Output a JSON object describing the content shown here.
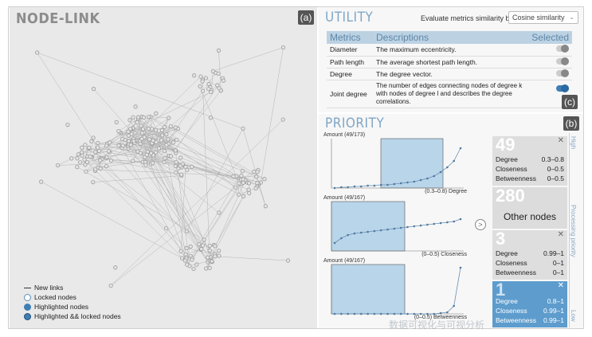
{
  "nodelink": {
    "title": "NODE-LINK",
    "badge": "(a)",
    "legend": [
      {
        "label": "New links",
        "icon": "line-icon"
      },
      {
        "label": "Locked nodes",
        "icon": "hollow-circle-icon"
      },
      {
        "label": "Highlighted nodes",
        "icon": "filled-circle-icon"
      },
      {
        "label": "Highlighted && locked nodes",
        "icon": "filled-ring-circle-icon"
      }
    ]
  },
  "utility": {
    "title": "UTILITY",
    "evaluate_label": "Evaluate metrics similarity by:",
    "similarity_value": "Cosine similarity",
    "badge": "(c)",
    "columns": [
      "Metrics",
      "Descriptions",
      "Selected"
    ],
    "rows": [
      {
        "metric": "Diameter",
        "description": "The maximum eccentricity.",
        "selected": false
      },
      {
        "metric": "Path length",
        "description": "The average shortest path length.",
        "selected": false
      },
      {
        "metric": "Degree",
        "description": "The degree vector.",
        "selected": false
      },
      {
        "metric": "Joint degree",
        "description": "The number of edges connecting nodes of degree k with nodes of degree l and describes the degree correlations.",
        "selected": true
      }
    ]
  },
  "priority": {
    "title": "PRIORITY",
    "badge": "(b)",
    "charts": [
      {
        "amount": "Amount (49/173)",
        "range": "(0.3–0.8) Degree"
      },
      {
        "amount": "Amount (49/167)",
        "range": "(0–0.5) Closeness"
      },
      {
        "amount": "Amount (49/167)",
        "range": "(0–0.5) Betweenness"
      }
    ],
    "arrow": ">",
    "cards": [
      {
        "count": "49",
        "rows": [
          [
            "Degree",
            "0.3–0.8"
          ],
          [
            "Closeness",
            "0–0.5"
          ],
          [
            "Betweenness",
            "0–0.5"
          ]
        ]
      },
      {
        "count": "280",
        "label": "Other nodes"
      },
      {
        "count": "3",
        "rows": [
          [
            "Degree",
            "0.99–1"
          ],
          [
            "Closeness",
            "0–1"
          ],
          [
            "Betweenness",
            "0–1"
          ]
        ]
      },
      {
        "count": "1",
        "rows": [
          [
            "Degree",
            "0.8–1"
          ],
          [
            "Closeness",
            "0.99–1"
          ],
          [
            "Betweenness",
            "0.99–1"
          ]
        ]
      }
    ],
    "axis_high": "High",
    "axis_mid": "Processing priority",
    "axis_low": "Low"
  },
  "watermark": "数据可视化与可视分析",
  "colors": {
    "accent": "#7ea6c7",
    "header": "#bcd2e3",
    "highlight": "#3e7fb5",
    "node": "#9a9a9a"
  }
}
